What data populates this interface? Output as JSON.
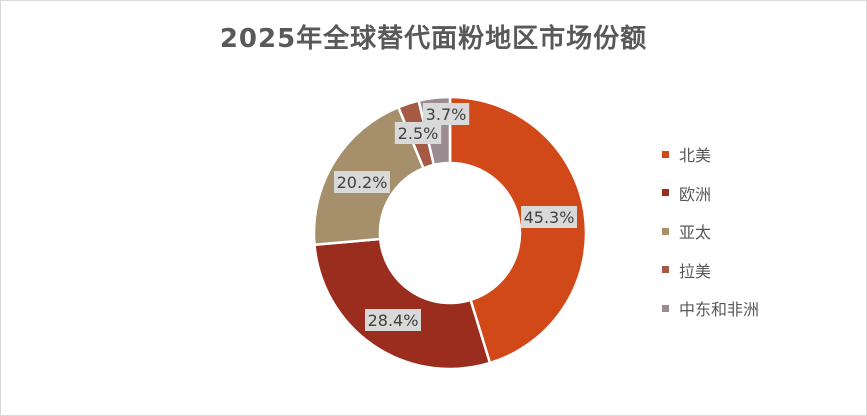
{
  "chart_data": {
    "type": "donut",
    "title": "2025年全球替代面粉地区市场份额",
    "categories": [
      "北美",
      "欧洲",
      "亚太",
      "拉美",
      "中东和非洲"
    ],
    "values": [
      45.3,
      28.4,
      20.2,
      2.5,
      3.7
    ],
    "data_labels": [
      "45.3%",
      "28.4%",
      "20.2%",
      "2.5%",
      "3.7%"
    ],
    "colors": [
      "#D24919",
      "#9B2D1F",
      "#A68F6B",
      "#A45A45",
      "#9C8B91"
    ],
    "legend_position": "right"
  }
}
